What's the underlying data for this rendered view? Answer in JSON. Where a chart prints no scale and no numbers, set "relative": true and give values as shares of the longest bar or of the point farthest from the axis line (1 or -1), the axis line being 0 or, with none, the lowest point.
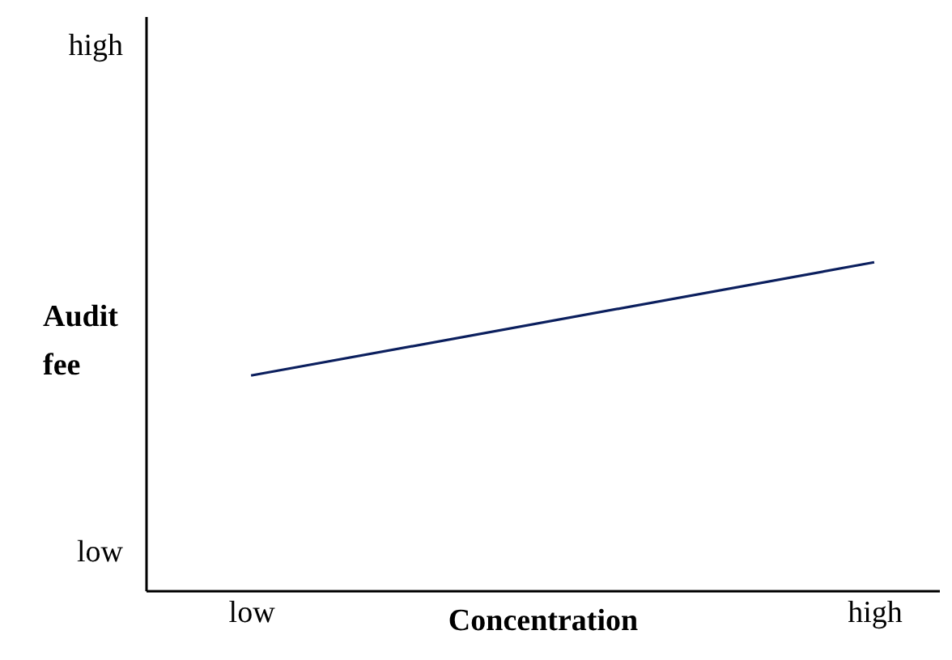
{
  "chart_data": {
    "type": "line",
    "xlabel": "Concentration",
    "ylabel": "Audit fee",
    "relative": true,
    "categories": [
      "low",
      "high"
    ],
    "series": [
      {
        "color": "#0b1f5e",
        "values": [
          0.655,
          1
        ]
      }
    ],
    "annotations": [
      "low",
      "high"
    ],
    "grid": false,
    "marker": "none",
    "line_style": "solid"
  }
}
